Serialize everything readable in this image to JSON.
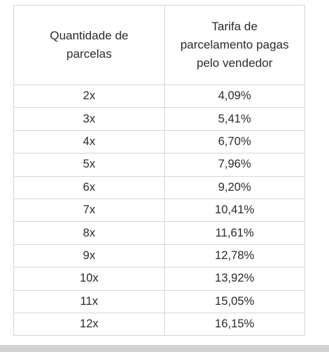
{
  "table": {
    "headers": {
      "col1": "Quantidade de\nparcelas",
      "col2": "Tarifa de\nparcelamento pagas\npelo vendedor"
    },
    "rows": [
      {
        "parcelas": "2x",
        "tarifa": "4,09%"
      },
      {
        "parcelas": "3x",
        "tarifa": "5,41%"
      },
      {
        "parcelas": "4x",
        "tarifa": "6,70%"
      },
      {
        "parcelas": "5x",
        "tarifa": "7,96%"
      },
      {
        "parcelas": "6x",
        "tarifa": "9,20%"
      },
      {
        "parcelas": "7x",
        "tarifa": "10,41%"
      },
      {
        "parcelas": "8x",
        "tarifa": "11,61%"
      },
      {
        "parcelas": "9x",
        "tarifa": "12,78%"
      },
      {
        "parcelas": "10x",
        "tarifa": "13,92%"
      },
      {
        "parcelas": "11x",
        "tarifa": "15,05%"
      },
      {
        "parcelas": "12x",
        "tarifa": "16,15%"
      }
    ]
  },
  "colors": {
    "text": "#2b2b2b",
    "border": "#d6d6d6",
    "bottom_bar": "#d2d2d2"
  }
}
